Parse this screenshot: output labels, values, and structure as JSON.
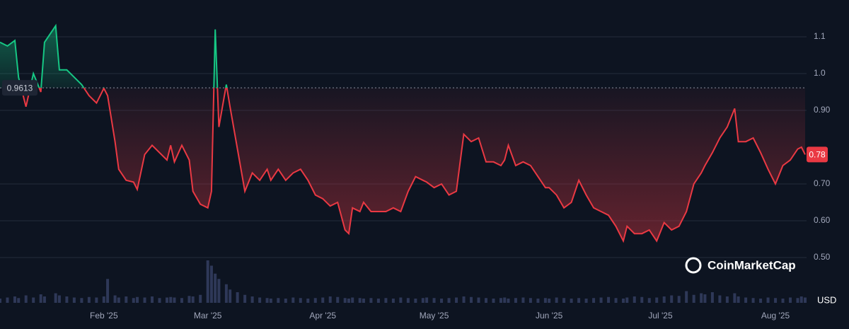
{
  "chart_data": {
    "type": "line",
    "x": [
      0,
      2,
      4,
      5,
      7,
      9,
      11,
      12,
      15,
      16,
      18,
      20,
      22,
      24,
      26,
      28,
      29,
      31,
      32,
      34,
      36,
      37,
      39,
      41,
      43,
      45,
      46,
      47,
      49,
      51,
      52,
      54,
      56,
      57,
      58,
      59,
      61,
      62,
      64,
      66,
      68,
      70,
      72,
      73,
      75,
      77,
      79,
      81,
      83,
      85,
      87,
      89,
      91,
      93,
      94,
      95,
      97,
      98,
      100,
      102,
      104,
      106,
      108,
      110,
      112,
      114,
      115,
      117,
      119,
      121,
      123,
      125,
      127,
      129,
      131,
      133,
      135,
      136,
      137,
      139,
      141,
      143,
      145,
      147,
      148,
      150,
      152,
      154,
      156,
      158,
      160,
      162,
      164,
      166,
      168,
      169,
      171,
      173,
      175,
      177,
      179,
      181,
      183,
      185,
      187,
      189,
      190,
      192,
      194,
      196,
      198,
      199,
      201,
      203,
      205,
      207,
      209,
      211,
      213,
      215,
      216,
      217
    ],
    "values": [
      1.085,
      1.075,
      1.09,
      0.99,
      0.91,
      1.0,
      0.95,
      1.085,
      1.13,
      1.01,
      1.01,
      0.99,
      0.97,
      0.94,
      0.92,
      0.96,
      0.94,
      0.815,
      0.74,
      0.71,
      0.705,
      0.685,
      0.78,
      0.805,
      0.785,
      0.765,
      0.805,
      0.76,
      0.805,
      0.765,
      0.68,
      0.645,
      0.635,
      0.68,
      1.12,
      0.855,
      0.97,
      0.91,
      0.795,
      0.68,
      0.73,
      0.71,
      0.74,
      0.71,
      0.74,
      0.71,
      0.73,
      0.74,
      0.71,
      0.67,
      0.66,
      0.64,
      0.65,
      0.575,
      0.565,
      0.635,
      0.625,
      0.65,
      0.625,
      0.625,
      0.625,
      0.635,
      0.625,
      0.68,
      0.72,
      0.71,
      0.705,
      0.69,
      0.7,
      0.67,
      0.68,
      0.835,
      0.815,
      0.825,
      0.76,
      0.76,
      0.75,
      0.765,
      0.805,
      0.75,
      0.76,
      0.75,
      0.72,
      0.69,
      0.69,
      0.67,
      0.635,
      0.65,
      0.71,
      0.67,
      0.635,
      0.625,
      0.615,
      0.585,
      0.545,
      0.585,
      0.565,
      0.565,
      0.575,
      0.545,
      0.595,
      0.575,
      0.585,
      0.625,
      0.7,
      0.73,
      0.75,
      0.785,
      0.825,
      0.855,
      0.905,
      0.815,
      0.815,
      0.825,
      0.785,
      0.74,
      0.7,
      0.75,
      0.765,
      0.795,
      0.8,
      0.78
    ],
    "colors": {
      "up": "#16c784",
      "down": "#ea3943"
    },
    "xlim": [
      0,
      217
    ],
    "xticks": [
      {
        "value": 28,
        "label": "Feb '25"
      },
      {
        "value": 56,
        "label": "Mar '25"
      },
      {
        "value": 87,
        "label": "Apr '25"
      },
      {
        "value": 117,
        "label": "May '25"
      },
      {
        "value": 148,
        "label": "Jun '25"
      },
      {
        "value": 178,
        "label": "Jul '25"
      },
      {
        "value": 209,
        "label": "Aug '25"
      }
    ],
    "ylim": [
      0.4,
      1.2
    ],
    "yticks": [
      1.1,
      {
        "value": 1,
        "label": "1.0"
      },
      {
        "value": 0.9,
        "label": "0.90"
      },
      {
        "value": 0.7,
        "label": "0.70"
      },
      {
        "value": 0.6,
        "label": "0.60"
      },
      {
        "value": 0.5,
        "label": "0.50"
      }
    ],
    "grid": true,
    "baseline": 0.9613,
    "price_label": "0.78",
    "currency": "USD",
    "watermark": "CoinMarketCap",
    "volume": {
      "color": "#2e3858",
      "vlim": [
        0,
        100
      ],
      "values": [
        8,
        10,
        12,
        9,
        14,
        10,
        16,
        12,
        18,
        14,
        12,
        10,
        9,
        11,
        10,
        12,
        45,
        14,
        10,
        12,
        9,
        11,
        10,
        12,
        9,
        10,
        11,
        10,
        9,
        13,
        12,
        15,
        80,
        70,
        55,
        45,
        35,
        25,
        20,
        15,
        12,
        10,
        9,
        8,
        9,
        8,
        10,
        9,
        8,
        9,
        10,
        12,
        11,
        9,
        8,
        10,
        9,
        8,
        9,
        8,
        9,
        8,
        10,
        9,
        8,
        9,
        10,
        9,
        8,
        9,
        10,
        12,
        11,
        10,
        9,
        8,
        9,
        10,
        8,
        9,
        10,
        9,
        8,
        9,
        8,
        10,
        9,
        8,
        9,
        8,
        9,
        10,
        11,
        9,
        8,
        10,
        12,
        11,
        9,
        10,
        12,
        14,
        13,
        22,
        15,
        18,
        16,
        20,
        14,
        12,
        18,
        12,
        10,
        9,
        8,
        10,
        9,
        8,
        10,
        9,
        12,
        10
      ]
    }
  }
}
